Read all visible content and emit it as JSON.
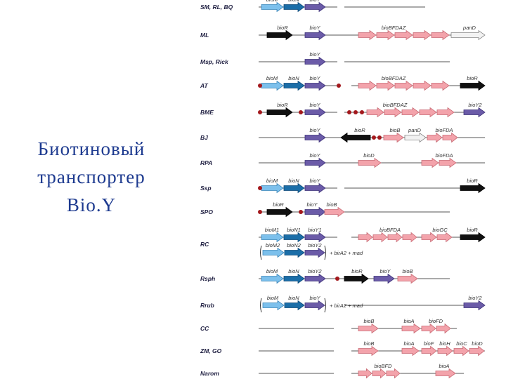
{
  "title": [
    "Биотиновый",
    "транспортер",
    "Bio.Y"
  ],
  "rows": [
    {
      "organism": "SM, RL, BQ",
      "genes": [
        "bioM",
        "bioN",
        "bioY"
      ]
    },
    {
      "organism": "ML",
      "genes": [
        "bioR",
        "bioY",
        "bioBFDAZ",
        "panD"
      ]
    },
    {
      "organism": "Msp, Rick",
      "genes": [
        "bioY"
      ]
    },
    {
      "organism": "AT",
      "genes": [
        "bioM",
        "bioN",
        "bioY",
        "bioBFDAZ",
        "bioR"
      ]
    },
    {
      "organism": "BME",
      "genes": [
        "bioR",
        "bioY",
        "bioBFDAZ",
        "bioY2"
      ]
    },
    {
      "organism": "BJ",
      "genes": [
        "bioY",
        "bioR",
        "bioB",
        "panD",
        "bioFDA"
      ]
    },
    {
      "organism": "RPA",
      "genes": [
        "bioY",
        "bioD",
        "bioFDA"
      ]
    },
    {
      "organism": "Ssp",
      "genes": [
        "bioM",
        "bioN",
        "bioY",
        "bioR"
      ]
    },
    {
      "organism": "SPO",
      "genes": [
        "bioR",
        "bioY",
        "bioB"
      ]
    },
    {
      "organism": "RC",
      "genes": [
        "bioM1",
        "bioN1",
        "bioY1",
        "bioM2",
        "bioN2",
        "bioY2",
        "+ birA2 + mad",
        "bioBFDA",
        "bioGC",
        "bioR"
      ]
    },
    {
      "organism": "Rsph",
      "genes": [
        "bioM",
        "bioN",
        "bioY2",
        "bioR",
        "bioY",
        "bioB"
      ]
    },
    {
      "organism": "Rrub",
      "genes": [
        "bioM",
        "bioN",
        "bioY",
        "+ birA2 + mad",
        "bioY2"
      ]
    },
    {
      "organism": "CC",
      "genes": [
        "bioB",
        "bioA",
        "bioFD"
      ]
    },
    {
      "organism": "ZM, GO",
      "genes": [
        "bioB",
        "bioA",
        "bioF",
        "bioH",
        "bioC",
        "bioD"
      ]
    },
    {
      "organism": "Narom",
      "genes": [
        "bioBFD",
        "bioA"
      ]
    }
  ]
}
